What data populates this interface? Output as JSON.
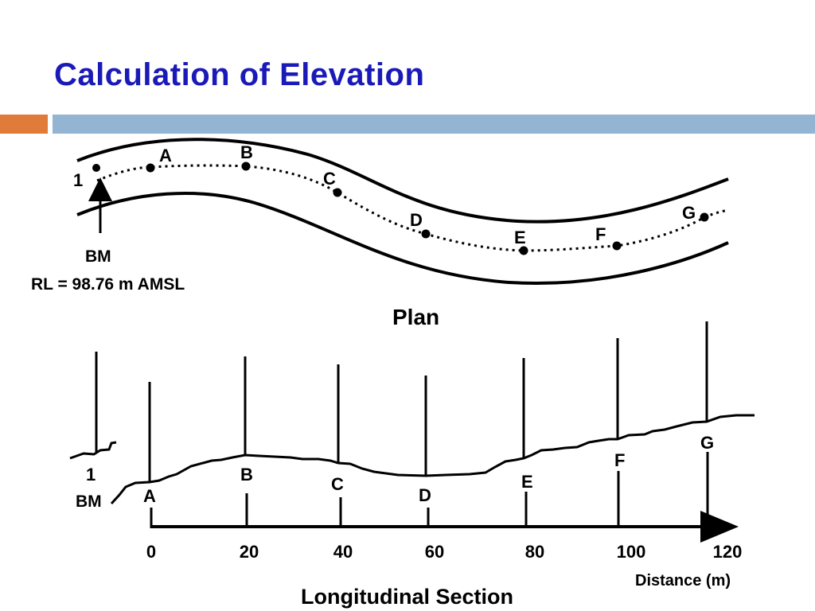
{
  "title": "Calculation of Elevation",
  "plan": {
    "caption": "Plan",
    "benchmark_id": "1",
    "benchmark_label": "BM",
    "benchmark_rl": "RL = 98.76 m AMSL",
    "points": [
      "A",
      "B",
      "C",
      "D",
      "E",
      "F",
      "G"
    ]
  },
  "section": {
    "caption": "Longitudinal Section",
    "benchmark_id": "1",
    "benchmark_label": "BM",
    "points": [
      "A",
      "B",
      "C",
      "D",
      "E",
      "F",
      "G"
    ],
    "distance_ticks": [
      "0",
      "20",
      "40",
      "60",
      "80",
      "100",
      "120"
    ],
    "axis_label": "Distance (m)"
  },
  "colors": {
    "title": "#1a1ab8",
    "accent_orange": "#e07b3a",
    "accent_blue": "#93b4d2"
  }
}
